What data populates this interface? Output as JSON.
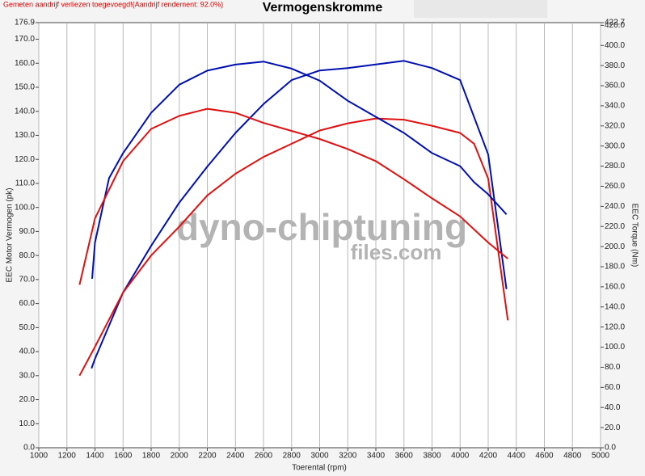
{
  "chart_data": {
    "type": "line",
    "title": "Vermogenskromme",
    "annotation": "Gemeten aandrijf verliezen toegevoegd!(Aandrijf rendement: 92.0%)",
    "watermark": [
      "dyno-chiptuning",
      "files.com"
    ],
    "xlabel": "Toerental (rpm)",
    "ylabel": "EEC Motor Vermogen (pk)",
    "y2label": "EEC Torque (Nm)",
    "xlim": [
      1000,
      5000
    ],
    "xticks": [
      1000,
      1200,
      1400,
      1600,
      1800,
      2000,
      2200,
      2400,
      2600,
      2800,
      3000,
      3200,
      3400,
      3600,
      3800,
      4000,
      4200,
      4400,
      4600,
      4800,
      5000
    ],
    "ylim": [
      0,
      176.9
    ],
    "yticks": [
      {
        "value": 0,
        "label": "0.0"
      },
      {
        "value": 10,
        "label": "10.0"
      },
      {
        "value": 20,
        "label": "20.0"
      },
      {
        "value": 30,
        "label": "30.0"
      },
      {
        "value": 40,
        "label": "40.0"
      },
      {
        "value": 50,
        "label": "50.0"
      },
      {
        "value": 60,
        "label": "60.0"
      },
      {
        "value": 70,
        "label": "70.0"
      },
      {
        "value": 80,
        "label": "80.0"
      },
      {
        "value": 90,
        "label": "90.0"
      },
      {
        "value": 100,
        "label": "100.0"
      },
      {
        "value": 110,
        "label": "110.0"
      },
      {
        "value": 120,
        "label": "120.0"
      },
      {
        "value": 130,
        "label": "130.0"
      },
      {
        "value": 140,
        "label": "140.0"
      },
      {
        "value": 150,
        "label": "150.0"
      },
      {
        "value": 160,
        "label": "160.0"
      },
      {
        "value": 170,
        "label": "170.0"
      },
      176.9
    ],
    "y2lim": [
      0,
      422.7
    ],
    "y2ticks": [
      {
        "value": 0,
        "label": "0.0"
      },
      {
        "value": 20,
        "label": "20.0"
      },
      {
        "value": 40,
        "label": "40.0"
      },
      {
        "value": 60,
        "label": "60.0"
      },
      {
        "value": 80,
        "label": "80.0"
      },
      {
        "value": 100,
        "label": "100.0"
      },
      {
        "value": 120,
        "label": "120.0"
      },
      {
        "value": 140,
        "label": "140.0"
      },
      {
        "value": 160,
        "label": "160.0"
      },
      {
        "value": 180,
        "label": "180.0"
      },
      {
        "value": 200,
        "label": "200.0"
      },
      {
        "value": 220,
        "label": "220.0"
      },
      {
        "value": 240,
        "label": "240.0"
      },
      {
        "value": 260,
        "label": "260.0"
      },
      {
        "value": 280,
        "label": "280.0"
      },
      {
        "value": 300,
        "label": "300.0"
      },
      {
        "value": 320,
        "label": "320.0"
      },
      {
        "value": 340,
        "label": "340.0"
      },
      {
        "value": 360,
        "label": "360.0"
      },
      {
        "value": 380,
        "label": "380.0"
      },
      {
        "value": 400,
        "label": "400.0"
      },
      {
        "value": 420,
        "label": "420.0"
      },
      422.7
    ],
    "grid": true,
    "series": [
      {
        "color": "#0010b0",
        "axis": "y",
        "x": [
          1375,
          1400,
          1600,
          1800,
          2000,
          2200,
          2400,
          2600,
          2800,
          3000,
          3200,
          3400,
          3600,
          3800,
          4000,
          4200,
          4330
        ],
        "values": [
          33,
          37,
          64.6,
          84,
          102,
          117,
          131,
          143,
          153,
          157,
          158,
          159.5,
          161,
          158,
          153,
          122,
          66
        ]
      },
      {
        "color": "#e01010",
        "axis": "y",
        "x": [
          1290,
          1400,
          1600,
          1800,
          2000,
          2200,
          2400,
          2600,
          2800,
          3000,
          3200,
          3400,
          3600,
          3800,
          4000,
          4100,
          4200,
          4340
        ],
        "values": [
          30,
          42,
          64.6,
          80,
          92,
          105,
          114,
          121,
          126.5,
          132,
          135,
          137,
          136.5,
          134,
          131,
          126.5,
          112,
          53
        ]
      },
      {
        "color": "#0010b0",
        "axis": "y2",
        "x": [
          1380,
          1400,
          1500,
          1600,
          1800,
          2000,
          2200,
          2400,
          2600,
          2800,
          3000,
          3200,
          3400,
          3600,
          3800,
          4000,
          4100,
          4200,
          4330
        ],
        "values": [
          168,
          204,
          268,
          293,
          333,
          361,
          375,
          381,
          384,
          377,
          365,
          345,
          329,
          313,
          293,
          280,
          264,
          252,
          232
        ]
      },
      {
        "color": "#e01010",
        "axis": "y2",
        "x": [
          1290,
          1400,
          1600,
          1800,
          2000,
          2200,
          2400,
          2600,
          2800,
          3000,
          3200,
          3400,
          3600,
          3800,
          4000,
          4200,
          4340
        ],
        "values": [
          162,
          228,
          285,
          317,
          330,
          337,
          333,
          323,
          315,
          307,
          297,
          285,
          267,
          248,
          230,
          204,
          188
        ]
      }
    ]
  }
}
